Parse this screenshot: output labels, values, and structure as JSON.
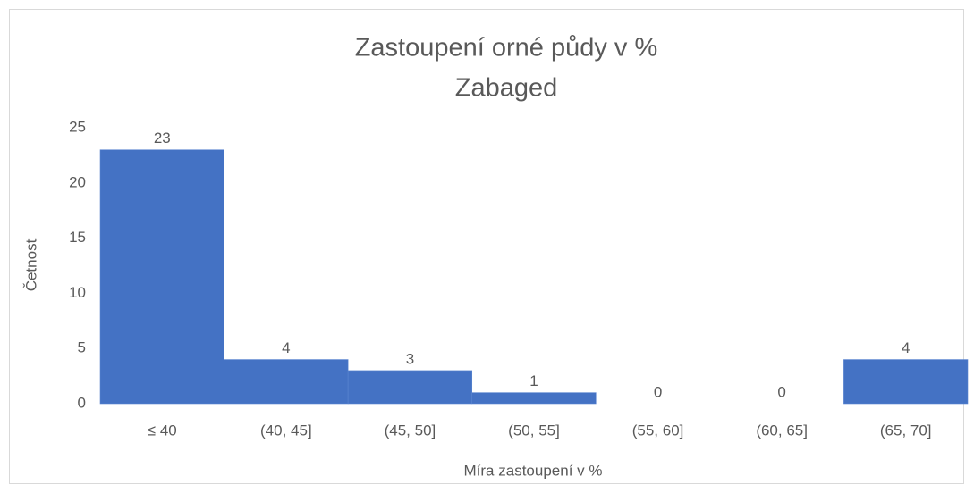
{
  "chart_data": {
    "type": "bar",
    "title": "Zastoupení orné půdy v %",
    "subtitle": "Zabaged",
    "x_label": "Míra zastoupení v %",
    "y_label": "Četnost",
    "categories": [
      "≤ 40",
      "(40, 45]",
      "(45, 50]",
      "(50, 55]",
      "(55, 60]",
      "(60, 65]",
      "(65, 70]"
    ],
    "values": [
      23,
      4,
      3,
      1,
      0,
      0,
      4
    ],
    "color": "#4472c4",
    "ylim": [
      0,
      25
    ],
    "yticks": [
      0,
      5,
      10,
      15,
      20,
      25
    ],
    "grid": false
  }
}
